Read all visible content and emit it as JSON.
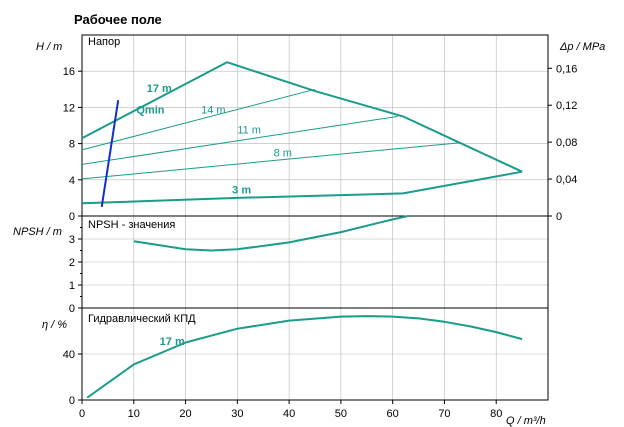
{
  "colors": {
    "curve": "#1a9c8a",
    "npsh_line": "#0d2fd1",
    "grid": "#b8b8b8",
    "frame": "#000000"
  },
  "chart_data": [
    {
      "type": "line",
      "title": "Рабочее поле",
      "panel_label": "Напор",
      "ylabel": "H / m",
      "ylabel_right": "Δp / MPa",
      "xlim": [
        0,
        90
      ],
      "ylim": [
        0,
        20
      ],
      "yticks": [
        0,
        4,
        8,
        12,
        16
      ],
      "yticks_right": [
        "0",
        "0,04",
        "0,08",
        "0,12",
        "0,16"
      ],
      "yticks_right_values": [
        0,
        4.08,
        8.16,
        12.24,
        16.32
      ],
      "grid": true,
      "series": [
        {
          "name": "17 m",
          "x": [
            0,
            28,
            45,
            62,
            85
          ],
          "y": [
            8.6,
            17.0,
            13.8,
            11.0,
            4.9
          ],
          "width": 2,
          "label_at": [
            12.5,
            13.7
          ]
        },
        {
          "name": "14 m",
          "x": [
            0,
            45
          ],
          "y": [
            7.3,
            14.0
          ],
          "width": 1,
          "label_at": [
            23,
            11.3
          ]
        },
        {
          "name": "11 m",
          "x": [
            0,
            61
          ],
          "y": [
            5.7,
            11.0
          ],
          "width": 1,
          "label_at": [
            30,
            9.1
          ]
        },
        {
          "name": "8 m",
          "x": [
            0,
            73
          ],
          "y": [
            4.1,
            8.1
          ],
          "width": 1,
          "label_at": [
            37,
            6.6
          ]
        },
        {
          "name": "3 m",
          "x": [
            0,
            30,
            62,
            85
          ],
          "y": [
            1.4,
            2.0,
            2.5,
            4.9
          ],
          "width": 2,
          "label_at": [
            29,
            2.5
          ]
        },
        {
          "name": "Qmin",
          "x": [
            3.8,
            7.0
          ],
          "y": [
            1.0,
            12.8
          ],
          "width": 2,
          "color_key": "npsh_line",
          "label_at": [
            10.5,
            11.3
          ]
        }
      ]
    },
    {
      "type": "line",
      "panel_label": "NPSH - значения",
      "ylabel": "NPSH / m",
      "xlim": [
        0,
        90
      ],
      "ylim": [
        0,
        4
      ],
      "yticks": [
        0,
        1,
        2,
        3
      ],
      "grid": true,
      "series": [
        {
          "x": [
            10,
            20,
            25,
            30,
            40,
            50,
            60,
            63
          ],
          "y": [
            2.9,
            2.55,
            2.5,
            2.55,
            2.85,
            3.3,
            3.85,
            4.0
          ],
          "width": 2
        }
      ]
    },
    {
      "type": "line",
      "panel_label": "Гидравлический КПД",
      "ylabel": "η / %",
      "xlabel": "Q / m³/h",
      "xlim": [
        0,
        90
      ],
      "ylim": [
        0,
        80
      ],
      "xticks": [
        0,
        10,
        20,
        30,
        40,
        50,
        60,
        70,
        80
      ],
      "yticks": [
        0,
        40
      ],
      "grid": true,
      "series": [
        {
          "name": "17 m",
          "x": [
            1,
            10,
            20,
            30,
            40,
            50,
            55,
            60,
            65,
            70,
            75,
            80,
            85
          ],
          "y": [
            2,
            31,
            50,
            62,
            69,
            72.5,
            73,
            72.5,
            71,
            68,
            64,
            59,
            53
          ],
          "width": 2,
          "label_at": [
            15,
            48
          ]
        }
      ]
    }
  ]
}
